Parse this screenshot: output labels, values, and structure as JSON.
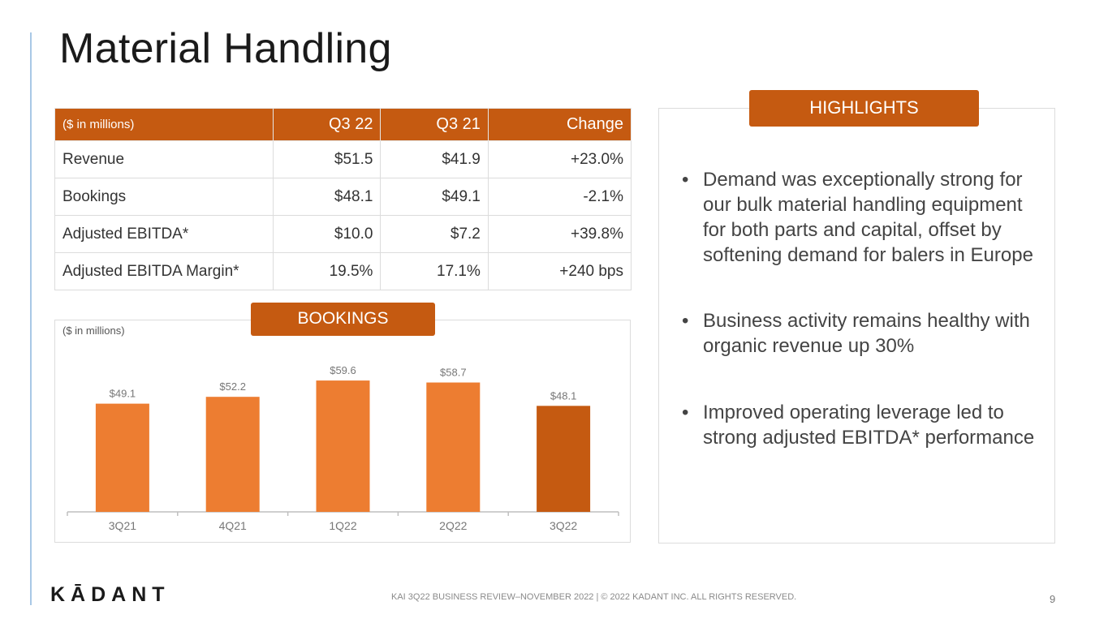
{
  "slide": {
    "title": "Material Handling",
    "footer": "KAI 3Q22 BUSINESS REVIEW–NOVEMBER 2022  |  © 2022 KADANT INC. ALL RIGHTS RESERVED.",
    "page_number": "9",
    "logo_text": "KĀDANT"
  },
  "table": {
    "headers": [
      "($ in millions)",
      "Q3 22",
      "Q3 21",
      "Change"
    ],
    "rows": [
      [
        "Revenue",
        "$51.5",
        "$41.9",
        "+23.0%"
      ],
      [
        "Bookings",
        "$48.1",
        "$49.1",
        "-2.1%"
      ],
      [
        "Adjusted EBITDA*",
        "$10.0",
        "$7.2",
        "+39.8%"
      ],
      [
        "Adjusted EBITDA Margin*",
        "19.5%",
        "17.1%",
        "+240 bps"
      ]
    ]
  },
  "bookings": {
    "tag": "BOOKINGS",
    "unit_note": "($ in millions)"
  },
  "highlights": {
    "tag": "HIGHLIGHTS",
    "items": [
      "Demand was exceptionally strong for our bulk material handling equipment for both parts and capital, offset by softening demand for balers in Europe",
      "Business activity remains healthy with organic revenue up 30%",
      "Improved operating leverage led to strong adjusted EBITDA* performance"
    ]
  },
  "colors": {
    "brand_orange": "#c55a11",
    "bar_orange": "#ed7d31",
    "highlight_bar": "#c55a11"
  },
  "chart_data": {
    "type": "bar",
    "title": "BOOKINGS",
    "categories": [
      "3Q21",
      "4Q21",
      "1Q22",
      "2Q22",
      "3Q22"
    ],
    "values": [
      49.1,
      52.2,
      59.6,
      58.7,
      48.1
    ],
    "data_labels": [
      "$49.1",
      "$52.2",
      "$59.6",
      "$58.7",
      "$48.1"
    ],
    "highlight_index": 4,
    "xlabel": "",
    "ylabel": "",
    "ylim": [
      0,
      60
    ],
    "grid": false,
    "legend": "none"
  }
}
